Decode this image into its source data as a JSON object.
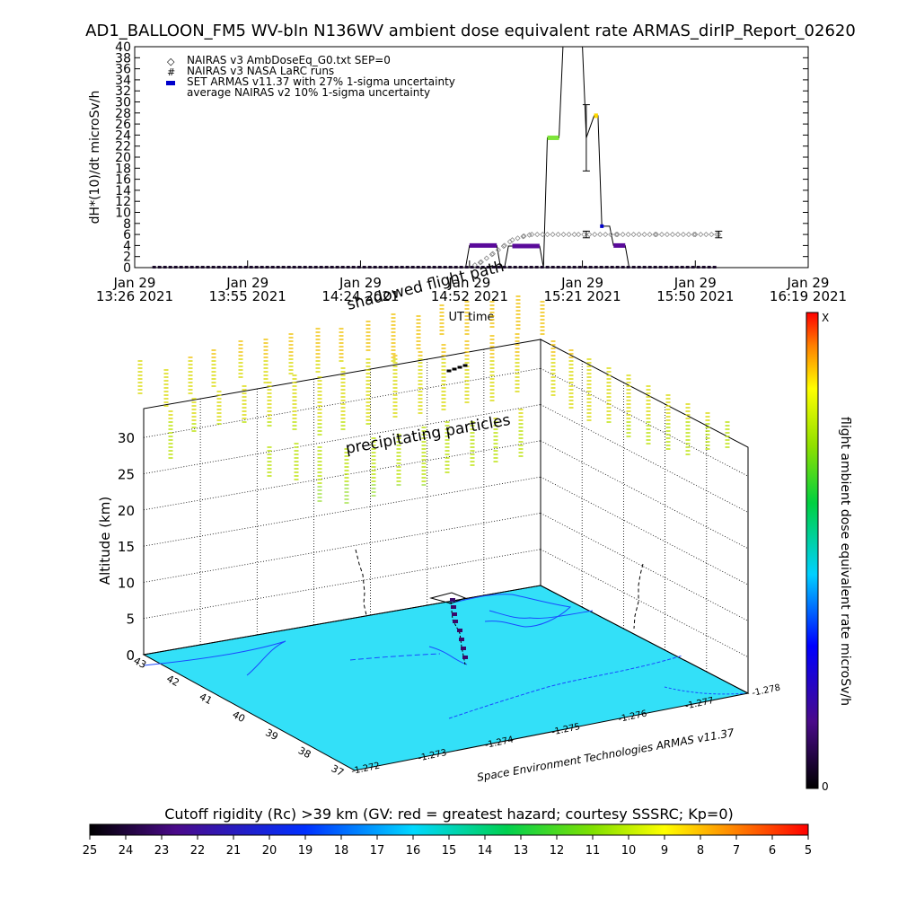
{
  "title": "AD1_BALLOON_FM5 WV-bIn N136WV ambient dose equivalent rate ARMAS_dirIP_Report_02620",
  "colors": {
    "nairas_v3": "#888888",
    "armas": "#0000cc",
    "purple": "#5a0a9a",
    "green": "#7ee53a",
    "yellow": "#ffd800",
    "surface": "#33e0f8",
    "line": "#000000"
  },
  "chart_data": [
    {
      "type": "line",
      "title": "AD1_BALLOON_FM5 WV-bIn N136WV ambient dose equivalent rate ARMAS_dirIP_Report_02620",
      "xlabel": "UT time",
      "ylabel": "dH*(10)/dt microSv/h",
      "ylim": [
        0,
        40
      ],
      "yticks": [
        "0",
        "2",
        "4",
        "6",
        "8",
        "10",
        "12",
        "14",
        "16",
        "18",
        "20",
        "22",
        "24",
        "26",
        "28",
        "30",
        "32",
        "34",
        "36",
        "38",
        "40"
      ],
      "xlim": [
        "13:26",
        "16:19"
      ],
      "xticks": [
        {
          "date": "Jan 29",
          "time": "13:26",
          "year": "2021"
        },
        {
          "date": "Jan 29",
          "time": "13:55",
          "year": "2021"
        },
        {
          "date": "Jan 29",
          "time": "14:24",
          "year": "2021"
        },
        {
          "date": "Jan 29",
          "time": "14:52",
          "year": "2021"
        },
        {
          "date": "Jan 29",
          "time": "15:21",
          "year": "2021"
        },
        {
          "date": "Jan 29",
          "time": "15:50",
          "year": "2021"
        },
        {
          "date": "Jan 29",
          "time": "16:19",
          "year": "2021"
        }
      ],
      "legend": [
        "NAIRAS v3 AmbDoseEq_G0.txt SEP=0",
        "NAIRAS v3 NASA LaRC runs",
        "SET ARMAS v11.37 with 27% 1-sigma uncertainty",
        "average NAIRAS v2 10% 1-sigma uncertainty"
      ],
      "legend_position": "top-left",
      "series": [
        {
          "name": "NAIRAS v3 AmbDoseEq_G0.txt SEP=0",
          "x": [
            "13:31",
            "14:52",
            "14:55",
            "14:58",
            "15:01",
            "15:03",
            "15:06",
            "15:08",
            "15:12",
            "15:20",
            "15:30",
            "15:40",
            "15:50",
            "15:56"
          ],
          "values": [
            0,
            0,
            1.0,
            2.5,
            4.0,
            5.0,
            5.7,
            6.0,
            6.0,
            6.0,
            6.0,
            6.0,
            6.0,
            6.0
          ]
        },
        {
          "name": "SET ARMAS v11.37 with 27% 1-sigma uncertainty",
          "x": [
            "13:31",
            "14:51",
            "14:52",
            "14:59",
            "15:00",
            "15:01",
            "15:02",
            "15:03",
            "15:10",
            "15:11",
            "15:12",
            "15:15",
            "15:16",
            "15:17",
            "15:21",
            "15:22",
            "15:24",
            "15:25",
            "15:26",
            "15:28",
            "15:29",
            "15:32",
            "15:33",
            "15:36",
            "15:56"
          ],
          "values": [
            0,
            0,
            4.0,
            4.0,
            0,
            0,
            3.9,
            3.9,
            3.9,
            0,
            23.5,
            23.5,
            40,
            40,
            40,
            23.5,
            27.5,
            27.5,
            7.5,
            7.5,
            4.0,
            4.0,
            0,
            0,
            0
          ]
        }
      ],
      "error_bars": [
        {
          "x": "15:22",
          "y": 23.5,
          "low": 17.5,
          "high": 29.5
        },
        {
          "x": "15:22",
          "y": 6.0,
          "low": 5.4,
          "high": 6.6
        },
        {
          "x": "15:56",
          "y": 6.0,
          "low": 5.4,
          "high": 6.6
        }
      ]
    },
    {
      "type": "scatter",
      "zlabel": "Altitude (km)",
      "ztick_labels": [
        "0",
        "5",
        "10",
        "15",
        "20",
        "25",
        "30"
      ],
      "lat_labels": [
        "43",
        "42",
        "41",
        "40",
        "39",
        "38",
        "37"
      ],
      "lon_labels": [
        "-1.272",
        "-1.273",
        "-1.274",
        "-1.275",
        "-1.276",
        "-1.277",
        "-1.278"
      ],
      "annotations": [
        "shadowed flight path",
        "precipitating particles"
      ],
      "footer": "Space Environment Technologies ARMAS v11.37",
      "right_colorbar": {
        "label": "flight ambient dose equivalent rate microSv/h",
        "min_label": "0",
        "max_label": "X"
      }
    },
    {
      "type": "heatmap",
      "title": "Cutoff rigidity (Rc) >39 km (GV: red = greatest hazard; courtesy SSSRC; Kp=0)",
      "tick_labels": [
        "25",
        "24",
        "23",
        "22",
        "21",
        "20",
        "19",
        "18",
        "17",
        "16",
        "15",
        "14",
        "13",
        "12",
        "11",
        "10",
        "9",
        "8",
        "7",
        "6",
        "5"
      ]
    }
  ]
}
